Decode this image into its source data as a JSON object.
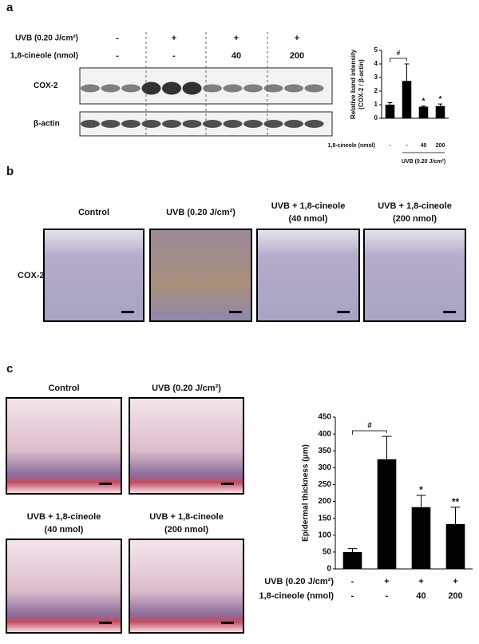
{
  "panels": {
    "a": {
      "label": "a",
      "rows": [
        {
          "label": "UVB (0.20 J/cm²)",
          "values": [
            "-",
            "+",
            "+",
            "+"
          ]
        },
        {
          "label": "1,8-cineole (nmol)",
          "values": [
            "-",
            "-",
            "40",
            "200"
          ]
        }
      ],
      "blots": [
        "COX-2",
        "β-actin"
      ]
    },
    "b": {
      "label": "b",
      "row_label": "COX-2",
      "captions": [
        [
          "Control"
        ],
        [
          "UVB (0.20 J/cm²)"
        ],
        [
          "UVB + 1,8-cineole",
          "(40 nmol)"
        ],
        [
          "UVB + 1,8-cineole",
          "(200 nmol)"
        ]
      ]
    },
    "c": {
      "label": "c",
      "captions": [
        [
          "Control"
        ],
        [
          "UVB (0.20 J/cm²)"
        ],
        [
          "UVB + 1,8-cineole",
          "(40 nmol)"
        ],
        [
          "UVB + 1,8-cineole",
          "(200 nmol)"
        ]
      ]
    }
  },
  "chart_data": [
    {
      "type": "bar",
      "ylabel": [
        "Relative band intensity",
        "(COX-2 / β-actin)"
      ],
      "values": [
        1.0,
        2.75,
        0.85,
        0.9
      ],
      "errors": [
        0.15,
        1.25,
        0.05,
        0.15
      ],
      "color": "#000000",
      "significance": [
        null,
        "#",
        "*",
        "*"
      ],
      "rows": [
        {
          "label": "1,8-cineole (nmol)",
          "values": [
            "-",
            "-",
            "40",
            "200"
          ]
        }
      ],
      "group_label": "UVB (0.20 J/cm²)",
      "ylim": [
        0,
        5
      ],
      "yticks": [
        0,
        1,
        2,
        3,
        4,
        5
      ]
    },
    {
      "type": "bar",
      "ylabel": [
        "Epidermal thickness (μm)"
      ],
      "values": [
        50,
        325,
        183,
        133
      ],
      "errors": [
        10,
        68,
        35,
        50
      ],
      "color": "#000000",
      "significance": [
        null,
        "#",
        "*",
        "**"
      ],
      "rows": [
        {
          "label": "UVB (0.20 J/cm²)",
          "values": [
            "-",
            "+",
            "+",
            "+"
          ]
        },
        {
          "label": "1,8-cineole (nmol)",
          "values": [
            "-",
            "-",
            "40",
            "200"
          ]
        }
      ],
      "ylim": [
        0,
        450
      ],
      "yticks": [
        0,
        50,
        100,
        150,
        200,
        250,
        300,
        350,
        400,
        450
      ]
    }
  ]
}
